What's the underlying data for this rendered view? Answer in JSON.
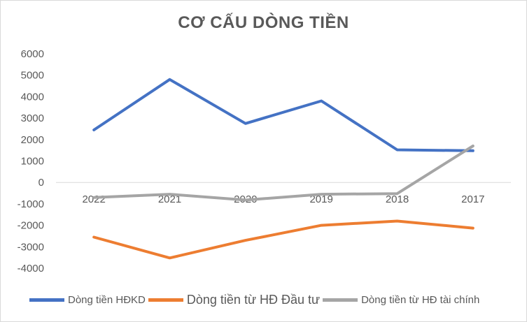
{
  "chart_data": {
    "type": "line",
    "title": "CƠ CẤU DÒNG TIỀN",
    "xlabel": "",
    "ylabel": "",
    "categories": [
      "2022",
      "2021",
      "2020",
      "2019",
      "2018",
      "2017"
    ],
    "y_ticks": [
      "6000",
      "5000",
      "4000",
      "3000",
      "2000",
      "1000",
      "0",
      "-1000",
      "-2000",
      "-3000",
      "-4000"
    ],
    "ylim": [
      -4000,
      6000
    ],
    "grid": false,
    "legend_position": "bottom",
    "series": [
      {
        "name": "Dòng tiền HĐKD",
        "color": "#4472C4",
        "values": [
          2450,
          4800,
          2750,
          3800,
          1520,
          1480
        ]
      },
      {
        "name": "Dòng tiền từ HĐ Đầu tư",
        "color": "#ED7D31",
        "values": [
          -2550,
          -3520,
          -2700,
          -2000,
          -1800,
          -2130
        ]
      },
      {
        "name": "Dòng tiền từ HĐ tài chính",
        "color": "#A5A5A5",
        "values": [
          -700,
          -550,
          -820,
          -550,
          -520,
          1700
        ]
      }
    ]
  }
}
